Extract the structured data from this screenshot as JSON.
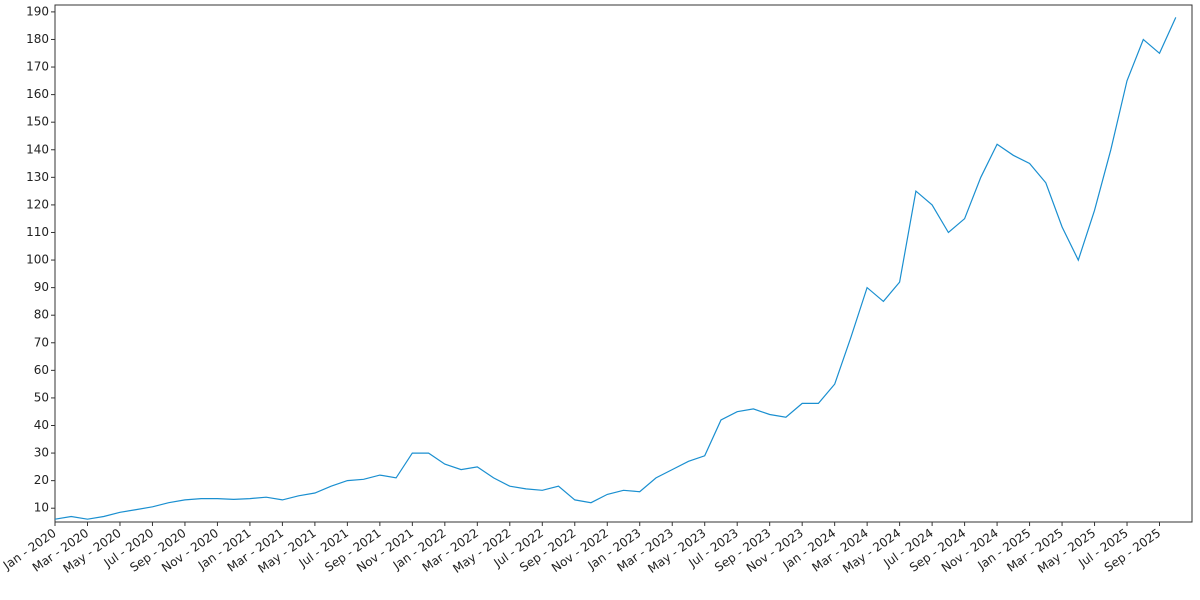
{
  "chart_data": {
    "type": "line",
    "color": "#1a8fd0",
    "x": [
      "2020-01",
      "2020-02",
      "2020-03",
      "2020-04",
      "2020-05",
      "2020-06",
      "2020-07",
      "2020-08",
      "2020-09",
      "2020-10",
      "2020-11",
      "2020-12",
      "2021-01",
      "2021-02",
      "2021-03",
      "2021-04",
      "2021-05",
      "2021-06",
      "2021-07",
      "2021-08",
      "2021-09",
      "2021-10",
      "2021-11",
      "2021-12",
      "2022-01",
      "2022-02",
      "2022-03",
      "2022-04",
      "2022-05",
      "2022-06",
      "2022-07",
      "2022-08",
      "2022-09",
      "2022-10",
      "2022-11",
      "2022-12",
      "2023-01",
      "2023-02",
      "2023-03",
      "2023-04",
      "2023-05",
      "2023-06",
      "2023-07",
      "2023-08",
      "2023-09",
      "2023-10",
      "2023-11",
      "2023-12",
      "2024-01",
      "2024-02",
      "2024-03",
      "2024-04",
      "2024-05",
      "2024-06",
      "2024-07",
      "2024-08",
      "2024-09",
      "2024-10",
      "2024-11",
      "2024-12",
      "2025-01",
      "2025-02",
      "2025-03",
      "2025-04",
      "2025-05",
      "2025-06",
      "2025-07",
      "2025-08",
      "2025-09",
      "2025-10"
    ],
    "values": [
      6,
      7,
      6,
      7,
      8.5,
      9.5,
      10.5,
      12,
      13,
      13.5,
      13.5,
      13.2,
      13.5,
      14,
      13,
      14.5,
      15.5,
      18,
      20,
      20.5,
      22,
      21,
      30,
      30,
      26,
      24,
      25,
      21,
      18,
      17,
      16.5,
      18,
      13,
      12,
      15,
      16.5,
      16,
      21,
      24,
      27,
      29,
      42,
      45,
      46,
      44,
      43,
      48,
      48,
      55,
      72,
      90,
      85,
      92,
      125,
      120,
      110,
      115,
      130,
      142,
      138,
      135,
      128,
      112,
      100,
      118,
      140,
      165,
      180,
      175,
      188
    ],
    "xlim": [
      "2020-01",
      "2025-11"
    ],
    "xticks": [
      {
        "value": "2020-01",
        "label": "Jan - 2020"
      },
      {
        "value": "2020-03",
        "label": "Mar - 2020"
      },
      {
        "value": "2020-05",
        "label": "May - 2020"
      },
      {
        "value": "2020-07",
        "label": "Jul - 2020"
      },
      {
        "value": "2020-09",
        "label": "Sep - 2020"
      },
      {
        "value": "2020-11",
        "label": "Nov - 2020"
      },
      {
        "value": "2021-01",
        "label": "Jan - 2021"
      },
      {
        "value": "2021-03",
        "label": "Mar - 2021"
      },
      {
        "value": "2021-05",
        "label": "May - 2021"
      },
      {
        "value": "2021-07",
        "label": "Jul - 2021"
      },
      {
        "value": "2021-09",
        "label": "Sep - 2021"
      },
      {
        "value": "2021-11",
        "label": "Nov - 2021"
      },
      {
        "value": "2022-01",
        "label": "Jan - 2022"
      },
      {
        "value": "2022-03",
        "label": "Mar - 2022"
      },
      {
        "value": "2022-05",
        "label": "May - 2022"
      },
      {
        "value": "2022-07",
        "label": "Jul - 2022"
      },
      {
        "value": "2022-09",
        "label": "Sep - 2022"
      },
      {
        "value": "2022-11",
        "label": "Nov - 2022"
      },
      {
        "value": "2023-01",
        "label": "Jan - 2023"
      },
      {
        "value": "2023-03",
        "label": "Mar - 2023"
      },
      {
        "value": "2023-05",
        "label": "May - 2023"
      },
      {
        "value": "2023-07",
        "label": "Jul - 2023"
      },
      {
        "value": "2023-09",
        "label": "Sep - 2023"
      },
      {
        "value": "2023-11",
        "label": "Nov - 2023"
      },
      {
        "value": "2024-01",
        "label": "Jan - 2024"
      },
      {
        "value": "2024-03",
        "label": "Mar - 2024"
      },
      {
        "value": "2024-05",
        "label": "May - 2024"
      },
      {
        "value": "2024-07",
        "label": "Jul - 2024"
      },
      {
        "value": "2024-09",
        "label": "Sep - 2024"
      },
      {
        "value": "2024-11",
        "label": "Nov - 2024"
      },
      {
        "value": "2025-01",
        "label": "Jan - 2025"
      },
      {
        "value": "2025-03",
        "label": "Mar - 2025"
      },
      {
        "value": "2025-05",
        "label": "May - 2025"
      },
      {
        "value": "2025-07",
        "label": "Jul - 2025"
      },
      {
        "value": "2025-09",
        "label": "Sep - 2025"
      }
    ],
    "ylim": [
      5,
      192.5
    ],
    "yticks": [
      10,
      20,
      30,
      40,
      50,
      60,
      70,
      80,
      90,
      100,
      110,
      120,
      130,
      140,
      150,
      160,
      170,
      180,
      190
    ]
  }
}
